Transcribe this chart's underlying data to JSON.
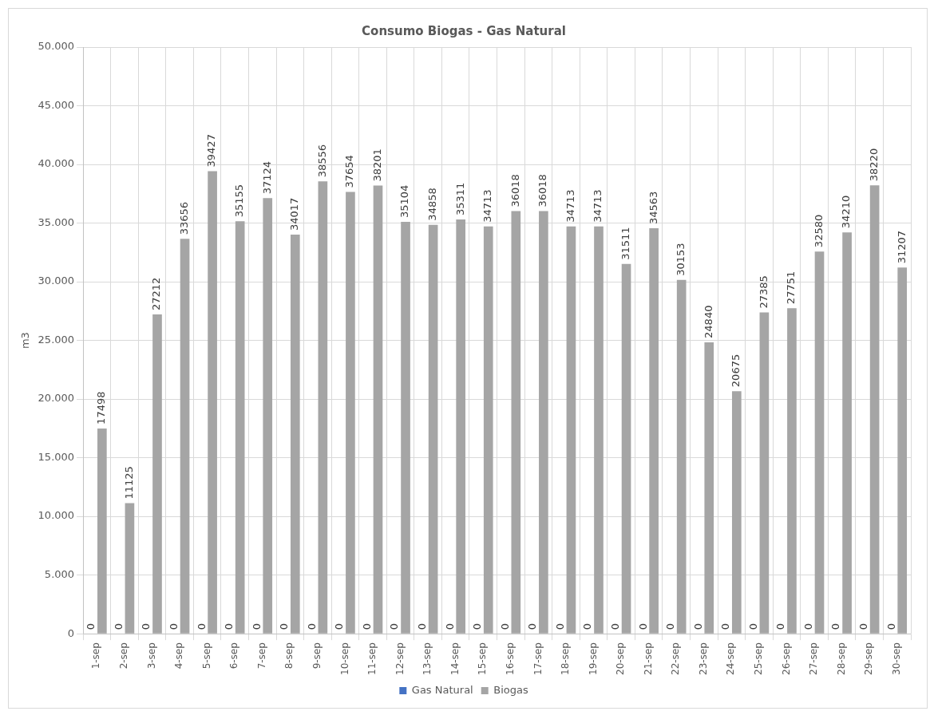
{
  "chart_data": {
    "type": "bar",
    "title": "Consumo Biogas - Gas Natural",
    "ylabel": "m3",
    "categories": [
      "1-sep",
      "2-sep",
      "3-sep",
      "4-sep",
      "5-sep",
      "6-sep",
      "7-sep",
      "8-sep",
      "9-sep",
      "10-sep",
      "11-sep",
      "12-sep",
      "13-sep",
      "14-sep",
      "15-sep",
      "16-sep",
      "17-sep",
      "18-sep",
      "19-sep",
      "20-sep",
      "21-sep",
      "22-sep",
      "23-sep",
      "24-sep",
      "25-sep",
      "26-sep",
      "27-sep",
      "28-sep",
      "29-sep",
      "30-sep"
    ],
    "series": [
      {
        "name": "Gas Natural",
        "color": "#4472c4",
        "values": [
          0,
          0,
          0,
          0,
          0,
          0,
          0,
          0,
          0,
          0,
          0,
          0,
          0,
          0,
          0,
          0,
          0,
          0,
          0,
          0,
          0,
          0,
          0,
          0,
          0,
          0,
          0,
          0,
          0,
          0
        ]
      },
      {
        "name": "Biogas",
        "color": "#a5a5a5",
        "values": [
          17498,
          11125,
          27212,
          33656,
          39427,
          35155,
          37124,
          34017,
          38556,
          37654,
          38201,
          35104,
          34858,
          35311,
          34713,
          36018,
          36018,
          34713,
          34713,
          31511,
          34563,
          30153,
          24840,
          20675,
          27385,
          27751,
          32580,
          34210,
          38220,
          31207
        ]
      }
    ],
    "ylim": [
      0,
      50000
    ],
    "yticks": [
      {
        "value": 0,
        "label": "0"
      },
      {
        "value": 5000,
        "label": "5.000"
      },
      {
        "value": 10000,
        "label": "10.000"
      },
      {
        "value": 15000,
        "label": "15.000"
      },
      {
        "value": 20000,
        "label": "20.000"
      },
      {
        "value": 25000,
        "label": "25.000"
      },
      {
        "value": 30000,
        "label": "30.000"
      },
      {
        "value": 35000,
        "label": "35.000"
      },
      {
        "value": 40000,
        "label": "40.000"
      },
      {
        "value": 45000,
        "label": "45.000"
      },
      {
        "value": 50000,
        "label": "50.000"
      }
    ],
    "grid": true,
    "legend": "bottom",
    "data_labels": true
  }
}
